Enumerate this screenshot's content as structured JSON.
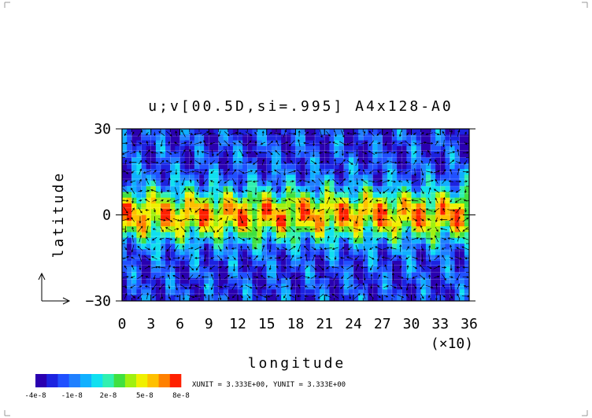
{
  "chart_data": {
    "type": "heatmap",
    "title": "u;v[00.5D,si=.995] A4x128-A0",
    "xlabel": "longitude",
    "ylabel": "latitude",
    "x_scale_note": "(×10)",
    "x_ticks": [
      "0",
      "3",
      "6",
      "9",
      "12",
      "15",
      "18",
      "21",
      "24",
      "27",
      "30",
      "33",
      "36"
    ],
    "y_ticks": [
      "30",
      "0",
      "-30"
    ],
    "xlim": [
      0,
      36
    ],
    "ylim": [
      -30,
      30
    ],
    "colorbar": {
      "colors": [
        "#2a00b0",
        "#1c23e0",
        "#2050ff",
        "#2080ff",
        "#10b0ff",
        "#10e0f0",
        "#30f0b0",
        "#40e040",
        "#a0f010",
        "#f0f000",
        "#ffc000",
        "#ff8000",
        "#ff2000"
      ],
      "labels": [
        "-4e-8",
        "-1e-8",
        "2e-8",
        "5e-8",
        "8e-8"
      ]
    },
    "unit_note": "XUNIT = 3.333E+00, YUNIT = 3.333E+00",
    "structure": "Equatorial band (about -10 to 10 latitude) of positive values (green to yellow, locally orange near 0 to 8 latitude); mid latitudes dominated by negative values (blue); vectors overlaid across the domain"
  }
}
